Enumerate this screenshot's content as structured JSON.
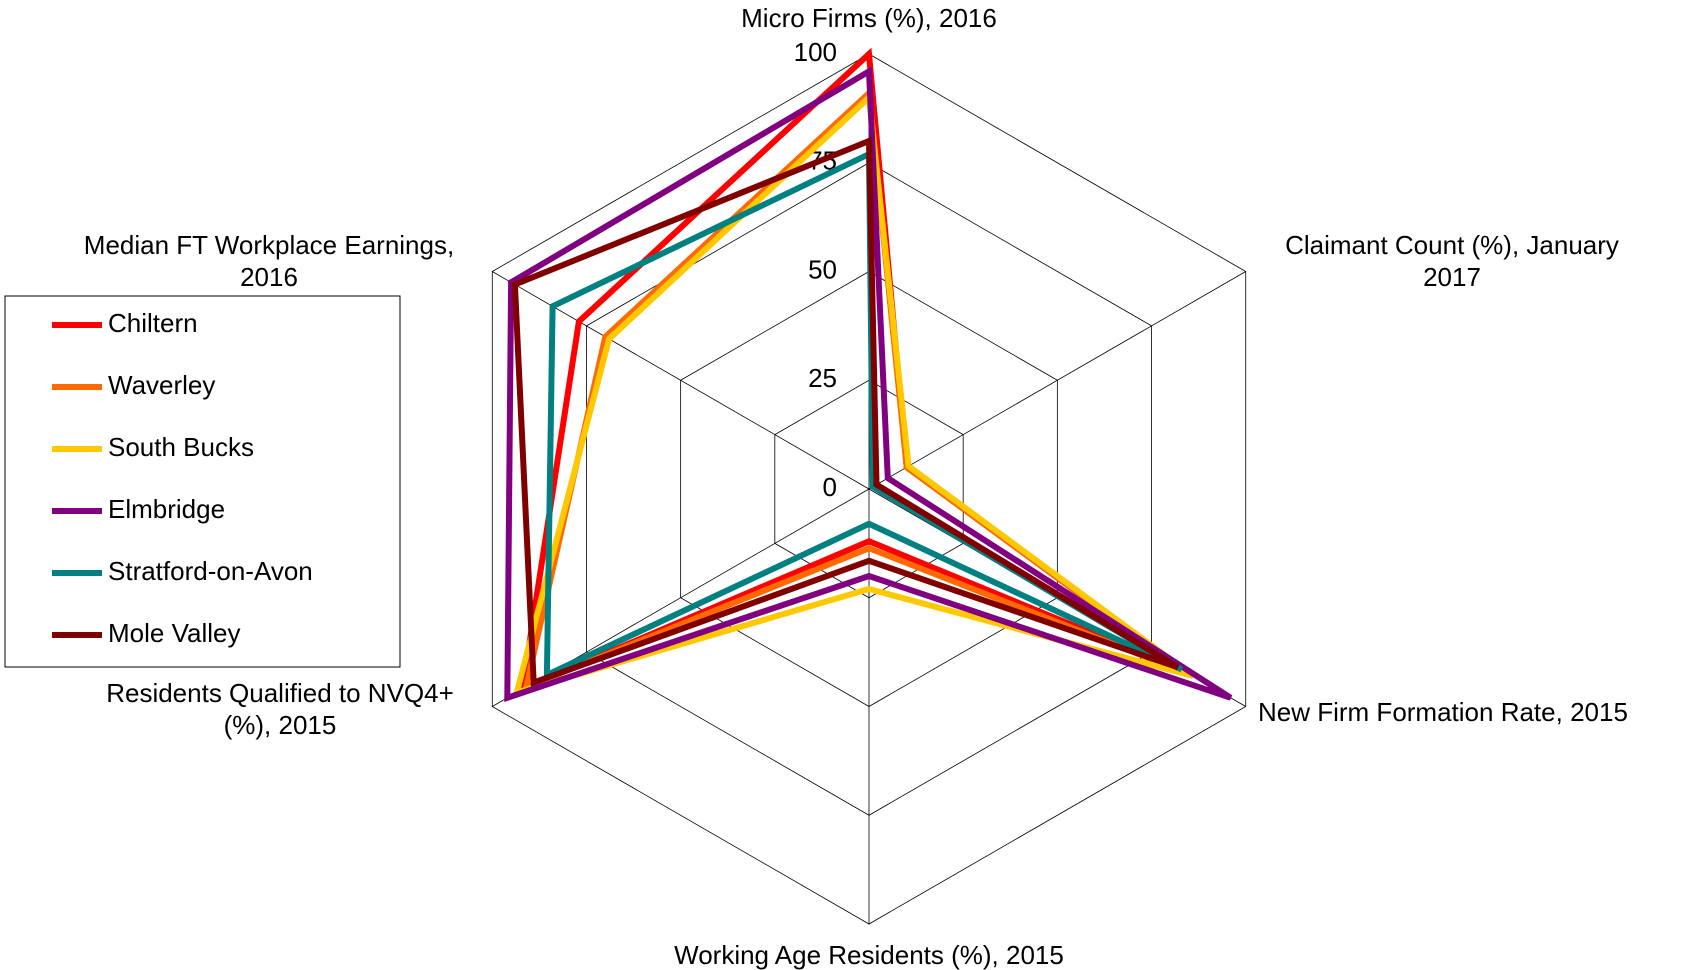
{
  "chart_data": {
    "type": "radar",
    "categories": [
      "Micro Firms (%), 2016",
      "Claimant Count (%), January 2017",
      "New Firm Formation Rate, 2015",
      "Working Age Residents (%), 2015",
      "Residents Qualified to NVQ4+ (%), 2015",
      "Median FT Workplace Earnings, 2016"
    ],
    "rlim": [
      0,
      100
    ],
    "rticks": [
      0,
      25,
      50,
      75,
      100
    ],
    "grid": true,
    "legend": "left",
    "series": [
      {
        "name": "Chiltern",
        "color": "#ff0000",
        "values": [
          100,
          10,
          84,
          12,
          92,
          77
        ]
      },
      {
        "name": "Waverley",
        "color": "#ff6a00",
        "values": [
          91,
          10,
          85,
          13.6,
          91,
          70
        ]
      },
      {
        "name": "South Bucks",
        "color": "#ffc800",
        "values": [
          90,
          10.5,
          86,
          23,
          93.5,
          69
        ]
      },
      {
        "name": "Elmbridge",
        "color": "#800080",
        "values": [
          96,
          5,
          96,
          20,
          96,
          95
        ]
      },
      {
        "name": "Stratford-on-Avon",
        "color": "#008080",
        "values": [
          77,
          1,
          83,
          8,
          85.5,
          84
        ]
      },
      {
        "name": "Mole Valley",
        "color": "#800000",
        "values": [
          80,
          2,
          82,
          16.5,
          89,
          94
        ]
      }
    ]
  }
}
